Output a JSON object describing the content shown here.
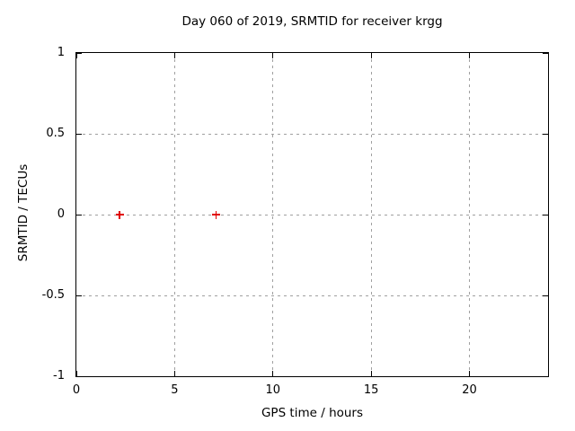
{
  "chart_data": {
    "type": "scatter",
    "title": "Day 060 of 2019, SRMTID for receiver krgg",
    "xlabel": "GPS time / hours",
    "ylabel": "SRMTID / TECUs",
    "xlim": [
      0,
      24
    ],
    "ylim": [
      -1,
      1
    ],
    "xticks": [
      0,
      5,
      10,
      15,
      20
    ],
    "yticks": [
      -1,
      -0.5,
      0,
      0.5,
      1
    ],
    "grid": true,
    "legend": "none",
    "background": "#ffffff",
    "grid_color": "#a0a0a0",
    "border_color": "#000000",
    "series": [
      {
        "name": "SRMTID",
        "marker": "plus",
        "color": "#e00000",
        "points": [
          {
            "x": 2.2,
            "y": 0.0
          },
          {
            "x": 7.1,
            "y": 0.0
          }
        ]
      }
    ]
  }
}
